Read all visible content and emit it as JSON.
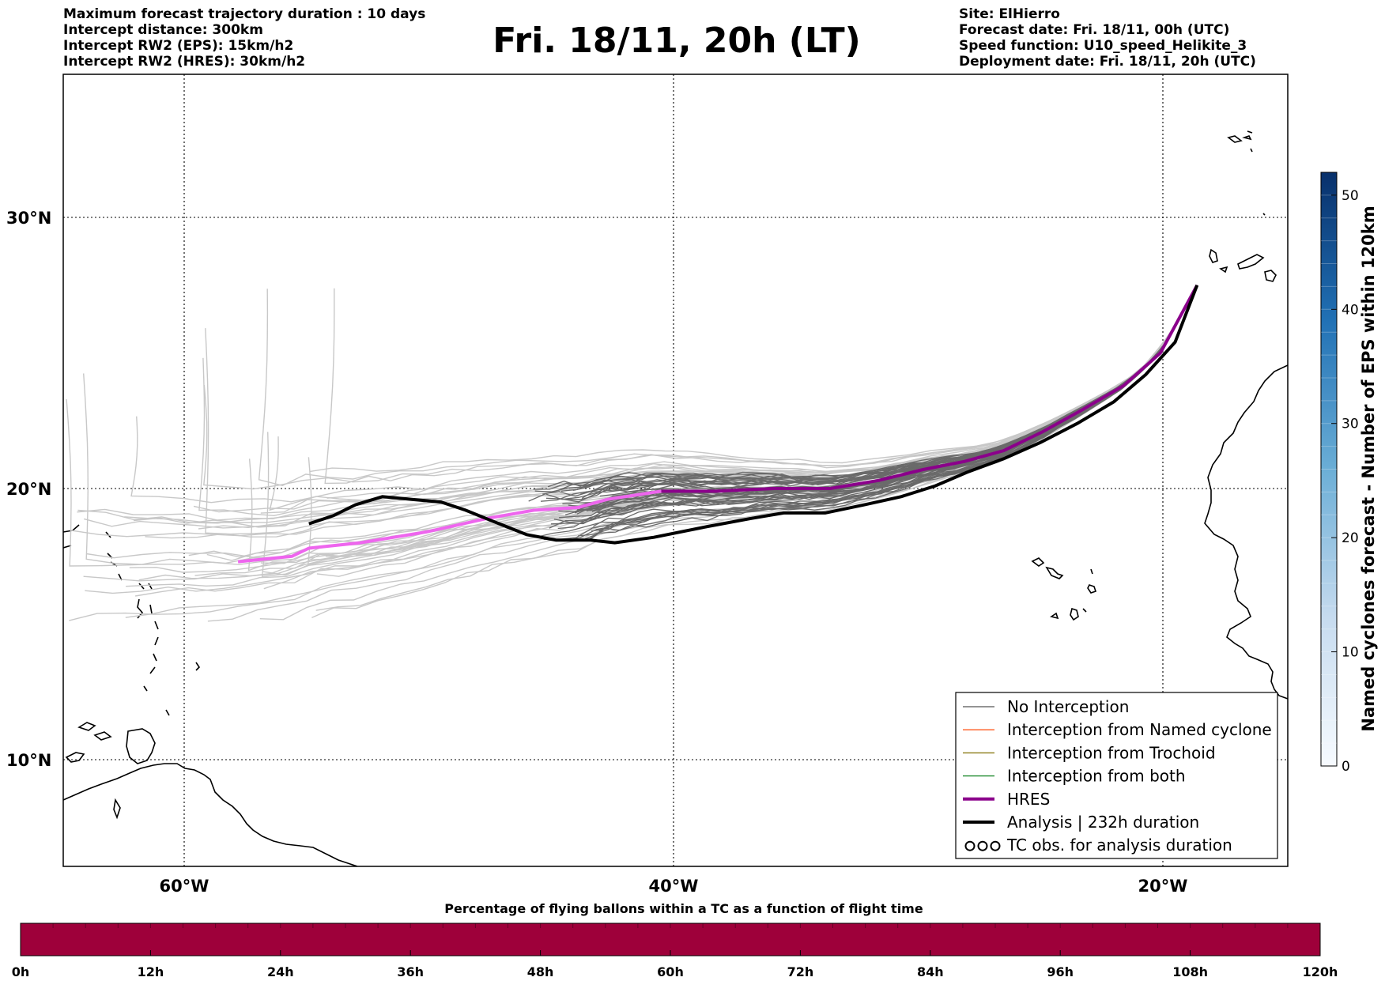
{
  "header_left": [
    "Maximum forecast trajectory duration : 10 days",
    "Intercept distance: 300km",
    "Intercept RW2 (EPS):  15km/h2",
    "Intercept RW2 (HRES): 30km/h2"
  ],
  "header_right": [
    "Site: ElHierro",
    "Forecast date: Fri. 18/11, 00h (UTC)",
    "Speed function: U10_speed_Helikite_3",
    "Deployment date: Fri. 18/11, 20h (UTC)"
  ],
  "title": "Fri. 18/11, 20h (LT)",
  "map": {
    "lon_ticks": [
      {
        "lon": -60,
        "label": "60°W"
      },
      {
        "lon": -40,
        "label": "40°W"
      },
      {
        "lon": -20,
        "label": "20°W"
      }
    ],
    "lat_ticks": [
      {
        "lat": 30,
        "label": "30°N"
      },
      {
        "lat": 20,
        "label": "20°N"
      },
      {
        "lat": 10,
        "label": "10°N"
      }
    ],
    "grid": "dotted",
    "extent": {
      "lon": [
        -65,
        -15
      ],
      "lat": [
        5.3,
        34.6
      ]
    }
  },
  "colorbar_right": {
    "label": "Named cyclones forecast - Number of EPS within 120km",
    "ticks": [
      0,
      10,
      20,
      30,
      40,
      50
    ],
    "range": [
      0,
      52
    ],
    "colormap": "Blues"
  },
  "colorbar_bottom": {
    "label": "Percentage of flying ballons within a TC as a function of flight time",
    "ticks": [
      "0h",
      "12h",
      "24h",
      "36h",
      "48h",
      "60h",
      "72h",
      "84h",
      "96h",
      "108h",
      "120h"
    ],
    "fill_color": "#9e003a"
  },
  "legend": {
    "placement": "lower-right",
    "items": [
      {
        "label": "No Interception",
        "color": "#707070",
        "style": "thin"
      },
      {
        "label": "Interception from Named cyclone",
        "color": "#ff5a1e",
        "style": "thin"
      },
      {
        "label": "Interception from Trochoid",
        "color": "#8a7a14",
        "style": "thin"
      },
      {
        "label": "Interception from both",
        "color": "#1e8a2e",
        "style": "thin"
      },
      {
        "label": "HRES",
        "color": "#8b008b",
        "style": "thick"
      },
      {
        "label": "Analysis | 232h duration",
        "color": "#000000",
        "style": "thick"
      },
      {
        "label": "TC obs. for analysis duration",
        "color": "#000000",
        "style": "marker"
      }
    ]
  },
  "chart_data": {
    "type": "line",
    "hres": {
      "lon": [
        -57.8,
        -55.6,
        -54.9,
        -52.8,
        -50.1,
        -47.6,
        -45.7,
        -43.9,
        -42.7,
        -40.5,
        -38.3,
        -35.9,
        -33.6,
        -31.6,
        -29.8,
        -28.1,
        -26.5,
        -24.9,
        -23.3,
        -21.6,
        -20.1,
        -18.6
      ],
      "lat": [
        17.3,
        17.5,
        17.8,
        18.0,
        18.4,
        18.9,
        19.2,
        19.3,
        19.6,
        19.9,
        19.9,
        20.0,
        20.0,
        20.3,
        20.7,
        21.0,
        21.4,
        22.1,
        22.9,
        23.8,
        25.0,
        27.5
      ]
    },
    "analysis": {
      "lon": [
        -54.9,
        -53.9,
        -53.0,
        -51.9,
        -50.7,
        -49.5,
        -48.5,
        -47.4,
        -46.0,
        -44.8,
        -43.4,
        -42.4,
        -40.8,
        -38.6,
        -36.8,
        -35.5,
        -33.8,
        -32.2,
        -30.7,
        -29.3,
        -28.0,
        -26.5,
        -25.0,
        -23.5,
        -22.0,
        -20.7,
        -19.5,
        -18.6
      ],
      "lat": [
        18.7,
        19.0,
        19.4,
        19.7,
        19.6,
        19.5,
        19.2,
        18.8,
        18.3,
        18.1,
        18.1,
        18.0,
        18.2,
        18.6,
        18.9,
        19.1,
        19.1,
        19.4,
        19.7,
        20.1,
        20.6,
        21.1,
        21.7,
        22.4,
        23.2,
        24.2,
        25.4,
        27.5
      ]
    },
    "hres_pink_segment_end_lon": -40.5
  }
}
